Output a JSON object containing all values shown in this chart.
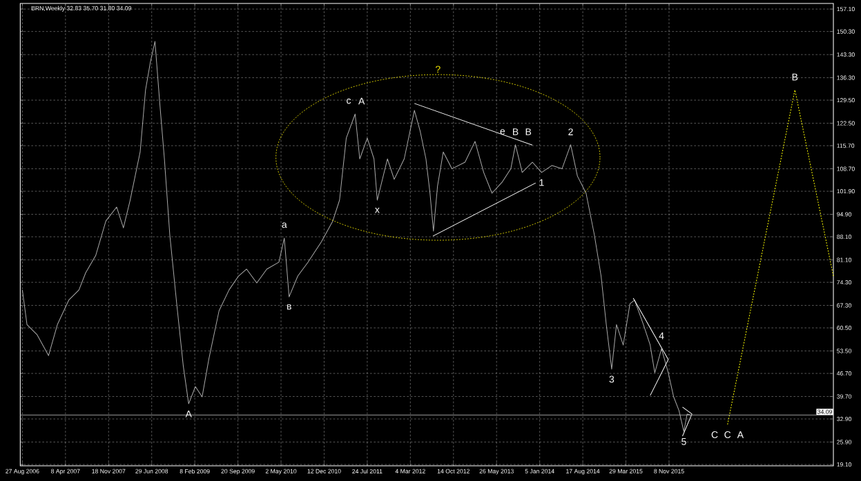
{
  "chart_data": {
    "type": "line",
    "title": "BRN,Weekly  32.83 35.70 31.80 34.09",
    "xlim": [
      "2006-08-16",
      "2018-03-11"
    ],
    "ylim": [
      18.7,
      158.8
    ],
    "xticks": [
      {
        "value": "2006-08-27",
        "label": "27 Aug 2006"
      },
      {
        "value": "2007-04-08",
        "label": "8 Apr 2007"
      },
      {
        "value": "2007-11-18",
        "label": "18 Nov 2007"
      },
      {
        "value": "2008-06-29",
        "label": "29 Jun 2008"
      },
      {
        "value": "2009-02-08",
        "label": "8 Feb 2009"
      },
      {
        "value": "2009-09-20",
        "label": "20 Sep 2009"
      },
      {
        "value": "2010-05-02",
        "label": "2 May 2010"
      },
      {
        "value": "2010-12-12",
        "label": "12 Dec 2010"
      },
      {
        "value": "2011-07-24",
        "label": "24 Jul 2011"
      },
      {
        "value": "2012-03-04",
        "label": "4 Mar 2012"
      },
      {
        "value": "2012-10-14",
        "label": "14 Oct 2012"
      },
      {
        "value": "2013-05-26",
        "label": "26 May 2013"
      },
      {
        "value": "2014-01-05",
        "label": "5 Jan 2014"
      },
      {
        "value": "2014-08-17",
        "label": "17 Aug 2014"
      },
      {
        "value": "2015-03-29",
        "label": "29 Mar 2015"
      },
      {
        "value": "2015-11-08",
        "label": "8 Nov 2015"
      }
    ],
    "yticks": [
      {
        "value": 19.1,
        "label": "19.10"
      },
      {
        "value": 25.9,
        "label": "25.90"
      },
      {
        "value": 32.9,
        "label": "32.90"
      },
      {
        "value": 39.7,
        "label": "39.70"
      },
      {
        "value": 46.7,
        "label": "46.70"
      },
      {
        "value": 53.5,
        "label": "53.50"
      },
      {
        "value": 60.5,
        "label": "60.50"
      },
      {
        "value": 67.3,
        "label": "67.30"
      },
      {
        "value": 74.3,
        "label": "74.30"
      },
      {
        "value": 81.1,
        "label": "81.10"
      },
      {
        "value": 88.1,
        "label": "88.10"
      },
      {
        "value": 94.9,
        "label": "94.90"
      },
      {
        "value": 101.9,
        "label": "101.90"
      },
      {
        "value": 108.7,
        "label": "108.70"
      },
      {
        "value": 115.7,
        "label": "115.70"
      },
      {
        "value": 122.5,
        "label": "122.50"
      },
      {
        "value": 129.5,
        "label": "129.50"
      },
      {
        "value": 136.3,
        "label": "136.30"
      },
      {
        "value": 143.3,
        "label": "143.30"
      },
      {
        "value": 150.3,
        "label": "150.30"
      },
      {
        "value": 157.1,
        "label": "157.10"
      }
    ],
    "grid": true,
    "marker": "none",
    "series": [
      {
        "color": "#a9a9a9",
        "line_style": "solid",
        "x": [
          "2006-08-27",
          "2006-09-20",
          "2006-11-12",
          "2007-01-10",
          "2007-02-25",
          "2007-04-25",
          "2007-06-17",
          "2007-07-22",
          "2007-09-12",
          "2007-11-04",
          "2007-12-30",
          "2008-02-03",
          "2008-03-09",
          "2008-04-30",
          "2008-05-28",
          "2008-06-22",
          "2008-07-16",
          "2008-08-10",
          "2008-09-03",
          "2008-10-01",
          "2008-11-06",
          "2008-12-10",
          "2009-01-07",
          "2009-02-11",
          "2009-03-18",
          "2009-04-22",
          "2009-06-14",
          "2009-08-05",
          "2009-09-23",
          "2009-11-04",
          "2009-12-27",
          "2010-02-17",
          "2010-04-21",
          "2010-05-19",
          "2010-06-13",
          "2010-07-28",
          "2010-09-19",
          "2010-11-28",
          "2011-01-26",
          "2011-03-02",
          "2011-04-06",
          "2011-05-22",
          "2011-06-15",
          "2011-07-24",
          "2011-08-28",
          "2011-09-14",
          "2011-11-06",
          "2011-12-11",
          "2012-02-01",
          "2012-03-25",
          "2012-04-24",
          "2012-05-24",
          "2012-06-14",
          "2012-07-02",
          "2012-07-23",
          "2012-08-22",
          "2012-10-06",
          "2012-12-13",
          "2013-02-03",
          "2013-03-20",
          "2013-05-02",
          "2013-06-23",
          "2013-08-08",
          "2013-09-01",
          "2013-10-06",
          "2013-11-28",
          "2014-01-15",
          "2014-03-09",
          "2014-05-01",
          "2014-06-15",
          "2014-07-20",
          "2014-09-03",
          "2014-10-16",
          "2014-11-20",
          "2014-12-17",
          "2015-01-14",
          "2015-02-08",
          "2015-03-15",
          "2015-04-19",
          "2015-05-13",
          "2015-06-28",
          "2015-08-02",
          "2015-08-26",
          "2015-09-30",
          "2015-11-04",
          "2015-12-02",
          "2015-12-30",
          "2016-01-24",
          "2016-02-10",
          "2016-02-28"
        ],
        "values": [
          72.0,
          61.5,
          58.4,
          52.1,
          61.5,
          68.9,
          72.0,
          77.2,
          82.4,
          92.9,
          97.1,
          90.8,
          99.2,
          113.8,
          132.6,
          141.0,
          147.3,
          128.5,
          111.7,
          88.7,
          67.8,
          49.0,
          37.5,
          42.7,
          39.6,
          51.1,
          65.7,
          72.0,
          76.2,
          78.3,
          74.1,
          78.3,
          80.4,
          87.7,
          69.9,
          76.2,
          80.4,
          86.6,
          92.9,
          99.2,
          118.0,
          125.3,
          111.7,
          118.0,
          111.7,
          99.2,
          111.7,
          105.5,
          111.7,
          126.4,
          120.1,
          111.7,
          101.3,
          89.8,
          103.4,
          113.8,
          108.7,
          110.7,
          117.0,
          107.6,
          101.3,
          104.6,
          108.7,
          116.0,
          107.6,
          110.7,
          107.6,
          109.7,
          108.7,
          116.0,
          106.5,
          101.3,
          88.7,
          76.2,
          61.5,
          48.0,
          61.5,
          55.3,
          67.8,
          68.9,
          61.5,
          55.3,
          46.9,
          54.2,
          46.9,
          39.6,
          35.4,
          29.1,
          34.4,
          34.09
        ]
      },
      {
        "color": "#ffffff",
        "line_style": "solid",
        "x": [
          "2012-03-25",
          "2013-11-28"
        ],
        "values": [
          128.5,
          115.9
        ]
      },
      {
        "color": "#ffffff",
        "line_style": "solid",
        "x": [
          "2012-06-29",
          "2013-12-15"
        ],
        "values": [
          88.3,
          104.4
        ]
      },
      {
        "color": "#ffffff",
        "line_style": "solid",
        "x": [
          "2015-05-06",
          "2015-11-04",
          "2015-08-02"
        ],
        "values": [
          69.5,
          50.9,
          40.0
        ]
      },
      {
        "color": "#ffffff",
        "line_style": "solid",
        "x": [
          "2016-01-17",
          "2016-03-06",
          "2016-01-17"
        ],
        "values": [
          36.5,
          34.4,
          27.7
        ]
      },
      {
        "color": "#ffff00",
        "line_style": "dotted",
        "x": [
          "2016-09-07",
          "2017-08-23",
          "2018-03-11"
        ],
        "values": [
          31.2,
          132.6,
          76.2
        ]
      }
    ],
    "ref_lines": [
      {
        "axis": "y",
        "value": 34.09,
        "label": "34.09",
        "color": "#c0c0c0"
      }
    ],
    "annotations": [
      {
        "text": "A",
        "x": "2009-01-07",
        "y": 37.5
      },
      {
        "text": "a",
        "x": "2010-05-19",
        "y": 87.7
      },
      {
        "text": "в",
        "x": "2010-06-13",
        "y": 69.9
      },
      {
        "text": "c",
        "x": "2011-05-22",
        "y": 125.3
      },
      {
        "text": "A",
        "x": "2011-05-22",
        "y": 125.3
      },
      {
        "text": "x",
        "x": "2011-09-14",
        "y": 99.2
      },
      "?",
      {
        "text": "e",
        "x": "2013-09-01",
        "y": 116.0
      },
      {
        "text": "B",
        "x": "2013-09-01",
        "y": 116.0
      },
      {
        "text": "B",
        "x": "2013-09-01",
        "y": 116.0
      },
      {
        "text": "2",
        "x": "2014-06-15",
        "y": 116.0
      },
      {
        "text": "1",
        "x": "2014-01-15",
        "y": 107.6
      },
      {
        "text": "3",
        "x": "2015-01-14",
        "y": 48.0
      },
      {
        "text": "4",
        "x": "2015-09-30",
        "y": 54.2
      },
      {
        "text": "5",
        "x": "2016-01-24",
        "y": 29.1
      },
      {
        "text": "C",
        "x": "2016-09-07",
        "y": 31.2
      },
      {
        "text": "C",
        "x": "2016-09-07",
        "y": 31.2
      },
      {
        "text": "A",
        "x": "2016-09-07",
        "y": 31.2
      },
      {
        "text": "B",
        "x": "2017-08-23",
        "y": 132.6
      }
    ]
  }
}
